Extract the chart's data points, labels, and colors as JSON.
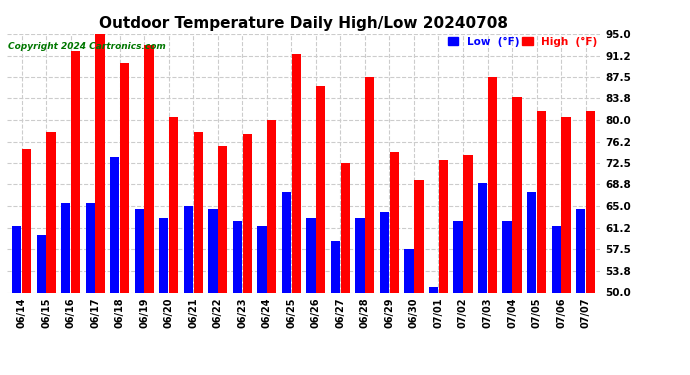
{
  "title": "Outdoor Temperature Daily High/Low 20240708",
  "copyright": "Copyright 2024 Cartronics.com",
  "legend_low": "Low  (°F)",
  "legend_high": "High  (°F)",
  "dates": [
    "06/14",
    "06/15",
    "06/16",
    "06/17",
    "06/18",
    "06/19",
    "06/20",
    "06/21",
    "06/22",
    "06/23",
    "06/24",
    "06/25",
    "06/26",
    "06/27",
    "06/28",
    "06/29",
    "06/30",
    "07/01",
    "07/02",
    "07/03",
    "07/04",
    "07/05",
    "07/06",
    "07/07"
  ],
  "high": [
    75.0,
    78.0,
    92.0,
    95.5,
    90.0,
    93.0,
    80.5,
    78.0,
    75.5,
    77.5,
    80.0,
    91.5,
    86.0,
    72.5,
    87.5,
    74.5,
    69.5,
    73.0,
    74.0,
    87.5,
    84.0,
    81.5,
    80.5,
    81.5
  ],
  "low": [
    61.5,
    60.0,
    65.5,
    65.5,
    73.5,
    64.5,
    63.0,
    65.0,
    64.5,
    62.5,
    61.5,
    67.5,
    63.0,
    59.0,
    63.0,
    64.0,
    57.5,
    51.0,
    62.5,
    69.0,
    62.5,
    67.5,
    61.5,
    64.5
  ],
  "bar_color_high": "#ff0000",
  "bar_color_low": "#0000ff",
  "background_color": "#ffffff",
  "grid_color": "#cccccc",
  "title_fontsize": 11,
  "ylim_min": 50.0,
  "ylim_max": 95.0,
  "yticks": [
    50.0,
    53.8,
    57.5,
    61.2,
    65.0,
    68.8,
    72.5,
    76.2,
    80.0,
    83.8,
    87.5,
    91.2,
    95.0
  ]
}
